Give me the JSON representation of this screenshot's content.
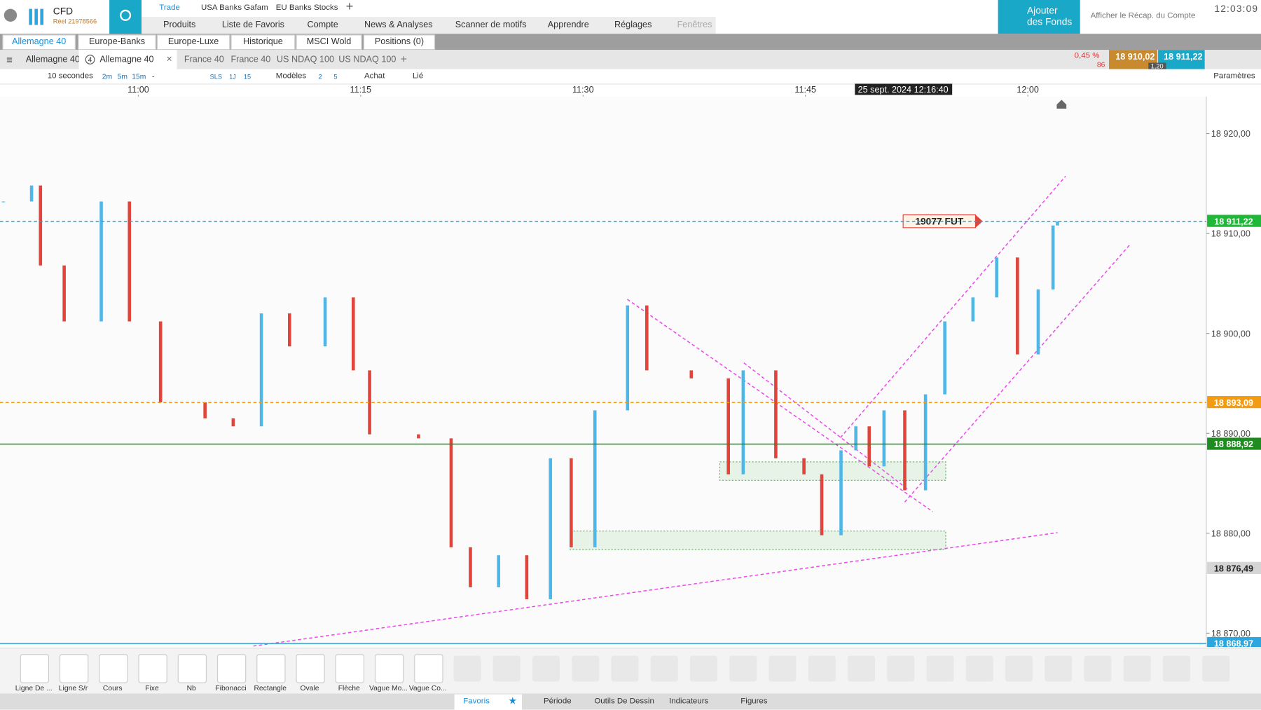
{
  "header": {
    "brand": "CFD",
    "account": "Réel 21978566",
    "top_tabs": [
      "Trade",
      "USA Banks Gafam",
      "EU Banks Stocks"
    ],
    "menu": [
      "Produits",
      "Liste de Favoris",
      "Compte",
      "News & Analyses",
      "Scanner de motifs",
      "Apprendre",
      "Réglages",
      "Fenêtres"
    ],
    "funds_button": "Ajouter des Fonds",
    "summary_link": "Afficher le Récap. du Compte",
    "clock": "12:03:09"
  },
  "workspace_tabs": [
    "Allemagne 40",
    "Europe-Banks",
    "Europe-Luxe",
    "Historique",
    "MSCI Wold",
    "Positions (0)"
  ],
  "chart_tabs": {
    "first": "Allemagne 40",
    "badge": "4",
    "active": "Allemagne 40",
    "others": [
      "France 40",
      "France 40",
      "US NDAQ 100",
      "US NDAQ 100"
    ]
  },
  "quote": {
    "change": "0,45 %",
    "count": "86",
    "bid": "18 910,02",
    "ask": "18 911,22",
    "spread": "1,20"
  },
  "toolbar": {
    "interval": "10 secondes",
    "periods": [
      "2m",
      "5m",
      "15m",
      "-"
    ],
    "quick": [
      "SLS",
      "1J",
      "15"
    ],
    "models": "Modèles",
    "counts": [
      "2",
      "5"
    ],
    "buy": "Achat",
    "linked": "Lié",
    "settings": "Paramètres"
  },
  "chart": {
    "type": "candlestick",
    "cursor_label": "25 sept. 2024 12:16:40",
    "annotation": "19077 FUT",
    "x": [
      650.9,
      652.8,
      653.4,
      655.0,
      657.5,
      659.4,
      661.5,
      664.5,
      666.4,
      668.3,
      670.2,
      672.6,
      674.5,
      675.6,
      678.9,
      681.1,
      682.4,
      684.3,
      686.2,
      687.8,
      689.2,
      690.8,
      693.0,
      694.3,
      697.3,
      699.8,
      700.8,
      703.0,
      704.9,
      706.1,
      707.4,
      708.4,
      709.3,
      710.3,
      711.7,
      713.1,
      714.4,
      716.3,
      717.9,
      719.3,
      720.7,
      721.7,
      722.0
    ],
    "values": [
      18913.2,
      18914.8,
      18906.8,
      18901.2,
      18913.2,
      18901.2,
      18893.1,
      18891.5,
      18890.7,
      18902.0,
      18898.7,
      18903.6,
      18896.3,
      18889.9,
      18889.5,
      18878.6,
      18874.6,
      18877.8,
      18873.4,
      18887.5,
      18878.6,
      18892.3,
      18902.8,
      18896.3,
      18895.5,
      18885.9,
      18896.3,
      18887.5,
      18885.9,
      18879.8,
      18888.3,
      18890.7,
      18886.7,
      18892.3,
      18884.3,
      18893.9,
      18901.2,
      18903.6,
      18907.6,
      18897.9,
      18904.4,
      18910.8,
      18911.2
    ],
    "up_color": "#4fb6e8",
    "down_color": "#e0443a",
    "xlim": [
      650.67,
      732.04
    ],
    "ylim": [
      18868.55,
      18923.7
    ],
    "xticks": [
      {
        "value": 660,
        "label": "11:00"
      },
      {
        "value": 675,
        "label": "11:15"
      },
      {
        "value": 690,
        "label": "11:30"
      },
      {
        "value": 705,
        "label": "11:45"
      },
      {
        "value": 720,
        "label": "12:00"
      }
    ],
    "yticks": [
      {
        "value": 18870,
        "label": "18 870,00"
      },
      {
        "value": 18880,
        "label": "18 880,00"
      },
      {
        "value": 18890,
        "label": "18 890,00"
      },
      {
        "value": 18900,
        "label": "18 900,00"
      },
      {
        "value": 18910,
        "label": "18 910,00"
      },
      {
        "value": 18920,
        "label": "18 920,00"
      }
    ],
    "price_lines": [
      {
        "value": 18911.22,
        "label": "18 911,22",
        "color": "#1fb838",
        "line": "dashed",
        "line_color": "#2a9fd6"
      },
      {
        "value": 18893.09,
        "label": "18 893,09",
        "color": "#f39c12",
        "line": "dashed",
        "line_color": "#f39c12"
      },
      {
        "value": 18888.92,
        "label": "18 888,92",
        "color": "#1e8c1e",
        "line": "solid",
        "line_color": "#1e8c1e"
      },
      {
        "value": 18876.49,
        "label": "18 876,49",
        "color": "#d5d5d5",
        "line": "none",
        "line_color": "#d5d5d5"
      },
      {
        "value": 18868.97,
        "label": "18 868,97",
        "color": "#2aa7de",
        "line": "solid",
        "line_color": "#2aa7de"
      }
    ]
  },
  "drawing_tools": [
    "Ligne De ...",
    "Ligne S/r",
    "Cours",
    "Fixe",
    "Nb",
    "Fibonacci",
    "Rectangle",
    "Ovale",
    "Flèche",
    "Vague Mo...",
    "Vague Co..."
  ],
  "bottom_tabs": [
    "Favoris",
    "Période",
    "Outils De Dessin",
    "Indicateurs",
    "Figures"
  ]
}
